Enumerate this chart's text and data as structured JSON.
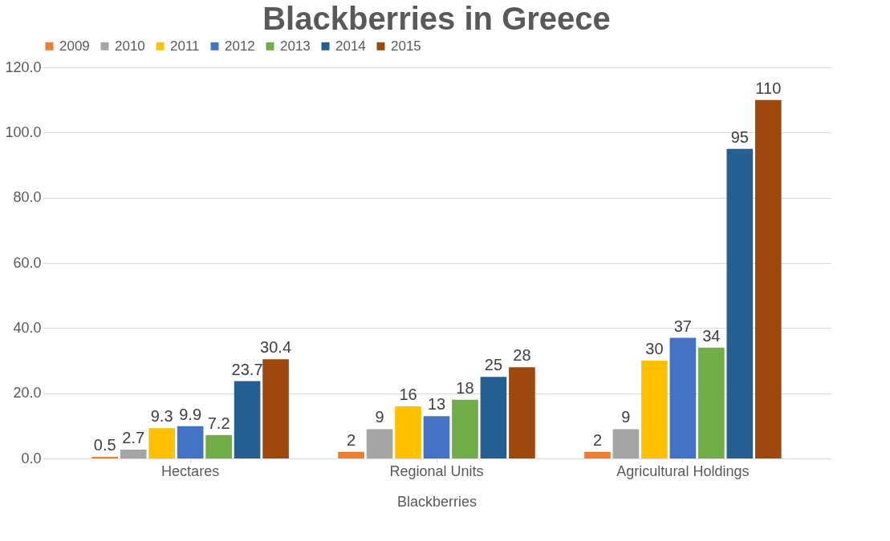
{
  "chart_data": {
    "type": "bar",
    "title": "Blackberries in Greece",
    "xlabel": "Blackberries",
    "categories": [
      "Hectares",
      "Regional Units",
      "Agricultural Holdings"
    ],
    "series": [
      {
        "name": "2009",
        "color": "#ed7d31",
        "values": [
          0.5,
          2,
          2
        ]
      },
      {
        "name": "2010",
        "color": "#a5a5a5",
        "values": [
          2.7,
          9,
          9
        ]
      },
      {
        "name": "2011",
        "color": "#ffc000",
        "values": [
          9.3,
          16,
          30
        ]
      },
      {
        "name": "2012",
        "color": "#4472c4",
        "values": [
          9.9,
          13,
          37
        ]
      },
      {
        "name": "2013",
        "color": "#70ad47",
        "values": [
          7.2,
          18,
          34
        ]
      },
      {
        "name": "2014",
        "color": "#255e91",
        "values": [
          23.7,
          25,
          95
        ]
      },
      {
        "name": "2015",
        "color": "#9e480e",
        "values": [
          30.4,
          28,
          110
        ]
      }
    ],
    "ylim": [
      0,
      120
    ],
    "yticks": [
      {
        "value": 0,
        "label": "0.0"
      },
      {
        "value": 20,
        "label": "20.0"
      },
      {
        "value": 40,
        "label": "40.0"
      },
      {
        "value": 60,
        "label": "60.0"
      },
      {
        "value": 80,
        "label": "80.0"
      },
      {
        "value": 100,
        "label": "100.0"
      },
      {
        "value": 120,
        "label": "120.0"
      }
    ],
    "grid": "y",
    "legend": "top",
    "data_labels": true
  }
}
